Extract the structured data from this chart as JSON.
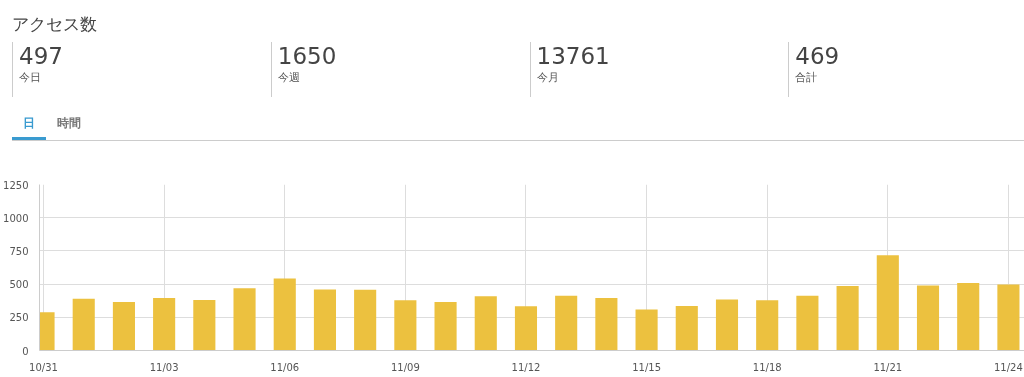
{
  "chart_data": {
    "type": "bar",
    "title": "アクセス数",
    "annotations": [
      "497",
      "今日",
      "1650",
      "今週",
      "13761",
      "今月",
      "469",
      "合計",
      "日",
      "時間"
    ],
    "categories": [
      "10/31",
      null,
      null,
      "11/03",
      null,
      null,
      "11/06",
      null,
      null,
      "11/09",
      null,
      null,
      "11/12",
      null,
      null,
      "11/15",
      null,
      null,
      "11/18",
      null,
      null,
      "11/21",
      null,
      null,
      "11/24"
    ],
    "values": [
      288,
      390,
      365,
      395,
      380,
      468,
      543,
      460,
      458,
      378,
      365,
      408,
      333,
      412,
      396,
      308,
      336,
      384,
      379,
      412,
      485,
      717,
      490,
      508,
      497
    ],
    "color": "#ecc13f",
    "ylim": [
      0,
      1250
    ],
    "yticks": [
      0,
      250,
      500,
      750,
      1000,
      1250
    ],
    "grid": true
  }
}
